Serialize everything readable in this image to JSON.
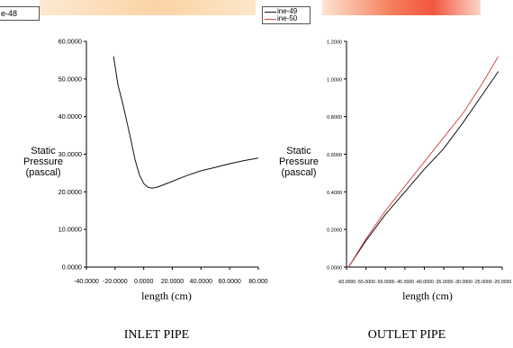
{
  "legend_left": {
    "label": "e-48"
  },
  "legend_right": {
    "items": [
      {
        "label": "ine-49",
        "color": "#111111"
      },
      {
        "label": "ine-50",
        "color": "#d94a4a"
      }
    ]
  },
  "captions": {
    "left": "INLET PIPE",
    "right": "OUTLET PIPE"
  },
  "chart_data": [
    {
      "type": "line",
      "title": "INLET PIPE",
      "xlabel": "length (cm)",
      "ylabel": [
        "Static",
        "Pressure",
        "(pascal)"
      ],
      "xlim": [
        -40,
        80
      ],
      "ylim": [
        0,
        60
      ],
      "xticks": [
        "-40.0000",
        "-20.0000",
        "0.0000",
        "20.0000",
        "40.0000",
        "60.0000",
        "80.000"
      ],
      "yticks": [
        "0.0000",
        "10.0000",
        "20.0000",
        "30.0000",
        "40.0000",
        "50.0000",
        "60.0000"
      ],
      "series": [
        {
          "color": "#111111",
          "x": [
            -21,
            -18,
            -15,
            -12,
            -9,
            -6,
            -3,
            0,
            3,
            6,
            10,
            20,
            30,
            40,
            50,
            60,
            70,
            80
          ],
          "y": [
            56,
            48.5,
            44,
            39,
            34,
            28.5,
            24.5,
            22.2,
            21.2,
            21.0,
            21.3,
            22.8,
            24.3,
            25.6,
            26.5,
            27.5,
            28.3,
            29.0
          ]
        }
      ]
    },
    {
      "type": "line",
      "title": "OUTLET PIPE",
      "xlabel": "length (cm)",
      "ylabel": [
        "Static",
        "Pressure",
        "(pascal)"
      ],
      "xlim": [
        -60,
        -20
      ],
      "ylim": [
        0,
        1.2
      ],
      "xticks": [
        "-60.0000",
        "-55.0000",
        "-50.0000",
        "-45.0000",
        "-40.0000",
        "-35.0000",
        "-30.0000",
        "-25.0000",
        "-20.0000"
      ],
      "yticks": [
        "0.0000",
        "0.2000",
        "0.4000",
        "0.6000",
        "0.8000",
        "1.0000",
        "1.2000"
      ],
      "series": [
        {
          "name": "ine-49",
          "color": "#111111",
          "x": [
            -59.5,
            -55,
            -50,
            -45,
            -40,
            -35,
            -30,
            -25,
            -21
          ],
          "y": [
            0,
            0.14,
            0.28,
            0.4,
            0.52,
            0.63,
            0.77,
            0.92,
            1.04
          ]
        },
        {
          "name": "ine-50",
          "color": "#d94a4a",
          "x": [
            -59.5,
            -55,
            -50,
            -45,
            -40,
            -35,
            -30,
            -25,
            -21
          ],
          "y": [
            0,
            0.15,
            0.3,
            0.43,
            0.56,
            0.69,
            0.82,
            0.98,
            1.12
          ]
        }
      ]
    }
  ]
}
